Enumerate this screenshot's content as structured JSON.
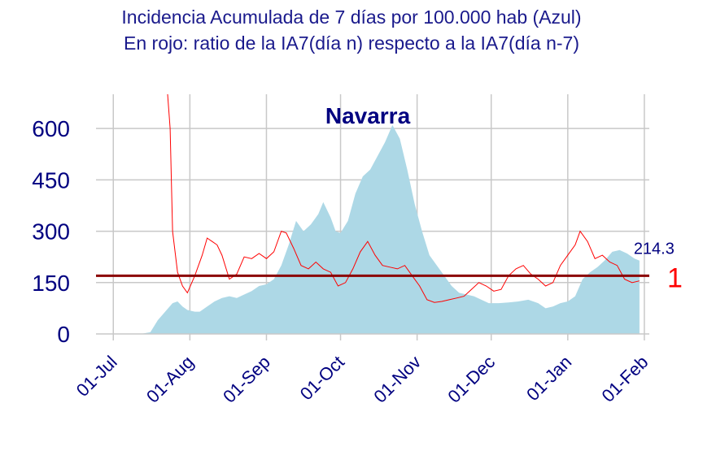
{
  "title_line1": "Incidencia Acumulada de 7 días por 100.000 hab (Azul)",
  "title_line2": "En rojo: ratio de la IA7(día n) respecto a la IA7(día n-7)",
  "colors": {
    "area": "#add8e6",
    "ratio_line": "#ff0000",
    "reference_line": "#8b0000",
    "text": "#000080",
    "grid": "#c8c8c8"
  },
  "chart_data": {
    "type": "area",
    "panel_title": "Navarra",
    "x_ticks": [
      "01-Jul",
      "01-Aug",
      "01-Sep",
      "01-Oct",
      "01-Nov",
      "01-Dec",
      "01-Jan",
      "01-Feb"
    ],
    "y_ticks": [
      "0",
      "150",
      "300",
      "450",
      "600"
    ],
    "ylim": [
      0,
      700
    ],
    "grid": true,
    "last_value_label": "214.3",
    "reference_label": "1",
    "reference_value": 170,
    "series": [
      {
        "kind": "area",
        "points": [
          [
            "2020-07-04",
            0
          ],
          [
            "2020-07-08",
            0
          ],
          [
            "2020-07-12",
            0
          ],
          [
            "2020-07-16",
            5
          ],
          [
            "2020-07-19",
            40
          ],
          [
            "2020-07-22",
            65
          ],
          [
            "2020-07-25",
            90
          ],
          [
            "2020-07-27",
            95
          ],
          [
            "2020-07-29",
            80
          ],
          [
            "2020-07-31",
            70
          ],
          [
            "2020-08-03",
            65
          ],
          [
            "2020-08-05",
            65
          ],
          [
            "2020-08-08",
            80
          ],
          [
            "2020-08-11",
            95
          ],
          [
            "2020-08-14",
            105
          ],
          [
            "2020-08-17",
            110
          ],
          [
            "2020-08-20",
            105
          ],
          [
            "2020-08-23",
            115
          ],
          [
            "2020-08-26",
            125
          ],
          [
            "2020-08-29",
            140
          ],
          [
            "2020-09-01",
            145
          ],
          [
            "2020-09-04",
            160
          ],
          [
            "2020-09-07",
            200
          ],
          [
            "2020-09-10",
            260
          ],
          [
            "2020-09-13",
            330
          ],
          [
            "2020-09-16",
            300
          ],
          [
            "2020-09-19",
            320
          ],
          [
            "2020-09-22",
            350
          ],
          [
            "2020-09-24",
            385
          ],
          [
            "2020-09-27",
            340
          ],
          [
            "2020-09-29",
            300
          ],
          [
            "2020-10-01",
            295
          ],
          [
            "2020-10-04",
            330
          ],
          [
            "2020-10-07",
            410
          ],
          [
            "2020-10-10",
            460
          ],
          [
            "2020-10-13",
            480
          ],
          [
            "2020-10-16",
            520
          ],
          [
            "2020-10-19",
            560
          ],
          [
            "2020-10-22",
            610
          ],
          [
            "2020-10-25",
            570
          ],
          [
            "2020-10-28",
            480
          ],
          [
            "2020-10-31",
            380
          ],
          [
            "2020-11-03",
            300
          ],
          [
            "2020-11-06",
            230
          ],
          [
            "2020-11-09",
            200
          ],
          [
            "2020-11-12",
            170
          ],
          [
            "2020-11-15",
            140
          ],
          [
            "2020-11-18",
            120
          ],
          [
            "2020-11-21",
            115
          ],
          [
            "2020-11-24",
            110
          ],
          [
            "2020-11-27",
            100
          ],
          [
            "2020-11-30",
            90
          ],
          [
            "2020-12-04",
            90
          ],
          [
            "2020-12-08",
            92
          ],
          [
            "2020-12-12",
            95
          ],
          [
            "2020-12-16",
            100
          ],
          [
            "2020-12-20",
            90
          ],
          [
            "2020-12-23",
            75
          ],
          [
            "2020-12-26",
            80
          ],
          [
            "2020-12-29",
            90
          ],
          [
            "2021-01-01",
            95
          ],
          [
            "2021-01-04",
            110
          ],
          [
            "2021-01-07",
            160
          ],
          [
            "2021-01-10",
            180
          ],
          [
            "2021-01-13",
            195
          ],
          [
            "2021-01-16",
            215
          ],
          [
            "2021-01-19",
            240
          ],
          [
            "2021-01-22",
            245
          ],
          [
            "2021-01-25",
            235
          ],
          [
            "2021-01-28",
            220
          ],
          [
            "2021-01-30",
            214.3
          ]
        ]
      },
      {
        "kind": "line",
        "points": [
          [
            "2020-07-23",
            700
          ],
          [
            "2020-07-24",
            600
          ],
          [
            "2020-07-25",
            300
          ],
          [
            "2020-07-27",
            180
          ],
          [
            "2020-07-29",
            140
          ],
          [
            "2020-07-31",
            120
          ],
          [
            "2020-08-03",
            170
          ],
          [
            "2020-08-06",
            230
          ],
          [
            "2020-08-08",
            280
          ],
          [
            "2020-08-10",
            270
          ],
          [
            "2020-08-12",
            260
          ],
          [
            "2020-08-14",
            230
          ],
          [
            "2020-08-17",
            160
          ],
          [
            "2020-08-20",
            175
          ],
          [
            "2020-08-23",
            225
          ],
          [
            "2020-08-26",
            220
          ],
          [
            "2020-08-29",
            235
          ],
          [
            "2020-09-01",
            220
          ],
          [
            "2020-09-04",
            240
          ],
          [
            "2020-09-07",
            300
          ],
          [
            "2020-09-09",
            295
          ],
          [
            "2020-09-12",
            250
          ],
          [
            "2020-09-15",
            200
          ],
          [
            "2020-09-18",
            190
          ],
          [
            "2020-09-21",
            210
          ],
          [
            "2020-09-24",
            190
          ],
          [
            "2020-09-27",
            180
          ],
          [
            "2020-09-30",
            140
          ],
          [
            "2020-10-03",
            150
          ],
          [
            "2020-10-06",
            190
          ],
          [
            "2020-10-09",
            240
          ],
          [
            "2020-10-12",
            270
          ],
          [
            "2020-10-15",
            230
          ],
          [
            "2020-10-18",
            200
          ],
          [
            "2020-10-21",
            195
          ],
          [
            "2020-10-24",
            190
          ],
          [
            "2020-10-27",
            200
          ],
          [
            "2020-10-30",
            170
          ],
          [
            "2020-11-02",
            140
          ],
          [
            "2020-11-05",
            100
          ],
          [
            "2020-11-08",
            92
          ],
          [
            "2020-11-11",
            95
          ],
          [
            "2020-11-14",
            100
          ],
          [
            "2020-11-17",
            105
          ],
          [
            "2020-11-20",
            110
          ],
          [
            "2020-11-23",
            130
          ],
          [
            "2020-11-26",
            150
          ],
          [
            "2020-11-29",
            140
          ],
          [
            "2020-12-02",
            125
          ],
          [
            "2020-12-05",
            130
          ],
          [
            "2020-12-08",
            170
          ],
          [
            "2020-12-11",
            190
          ],
          [
            "2020-12-14",
            200
          ],
          [
            "2020-12-17",
            175
          ],
          [
            "2020-12-20",
            160
          ],
          [
            "2020-12-23",
            140
          ],
          [
            "2020-12-26",
            150
          ],
          [
            "2020-12-29",
            200
          ],
          [
            "2021-01-01",
            230
          ],
          [
            "2021-01-04",
            260
          ],
          [
            "2021-01-06",
            300
          ],
          [
            "2021-01-09",
            270
          ],
          [
            "2021-01-12",
            220
          ],
          [
            "2021-01-15",
            230
          ],
          [
            "2021-01-18",
            210
          ],
          [
            "2021-01-21",
            200
          ],
          [
            "2021-01-24",
            160
          ],
          [
            "2021-01-27",
            150
          ],
          [
            "2021-01-30",
            155
          ]
        ]
      }
    ]
  }
}
